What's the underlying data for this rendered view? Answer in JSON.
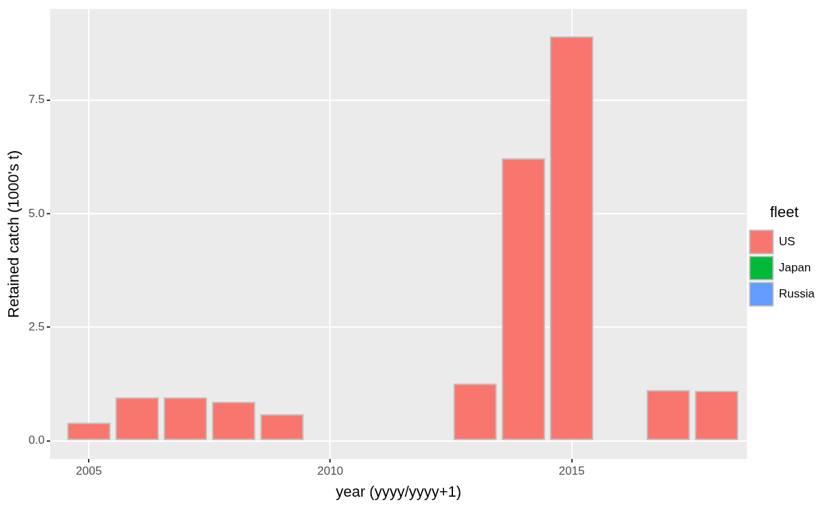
{
  "chart_data": {
    "type": "bar",
    "stacked": true,
    "xlabel": "year (yyyy/yyyy+1)",
    "ylabel": "Retained catch (1000's t)",
    "legend_title": "fleet",
    "legend": "right",
    "x": [
      2005,
      2006,
      2007,
      2008,
      2009,
      2010,
      2011,
      2012,
      2013,
      2014,
      2015,
      2016,
      2017,
      2018
    ],
    "series": [
      {
        "name": "US",
        "color": "#f8766d",
        "values": [
          0.4,
          0.96,
          0.96,
          0.86,
          0.59,
          0,
          0,
          0,
          1.26,
          6.22,
          8.9,
          0,
          1.12,
          1.1
        ]
      },
      {
        "name": "Japan",
        "color": "#00ba38",
        "values": [
          0,
          0,
          0,
          0,
          0,
          0,
          0,
          0,
          0,
          0,
          0,
          0,
          0,
          0
        ]
      },
      {
        "name": "Russia",
        "color": "#619cff",
        "values": [
          0,
          0,
          0,
          0,
          0,
          0,
          0,
          0,
          0,
          0,
          0,
          0,
          0,
          0
        ]
      }
    ],
    "xlim": [
      2004.2,
      2018.63
    ],
    "xticks": [
      2005,
      2010,
      2015
    ],
    "ylim": [
      -0.4,
      9.5
    ],
    "yticks": [
      {
        "value": 0,
        "label": "0.0"
      },
      2.5,
      {
        "value": 5,
        "label": "5.0"
      },
      7.5
    ],
    "grid": true
  }
}
